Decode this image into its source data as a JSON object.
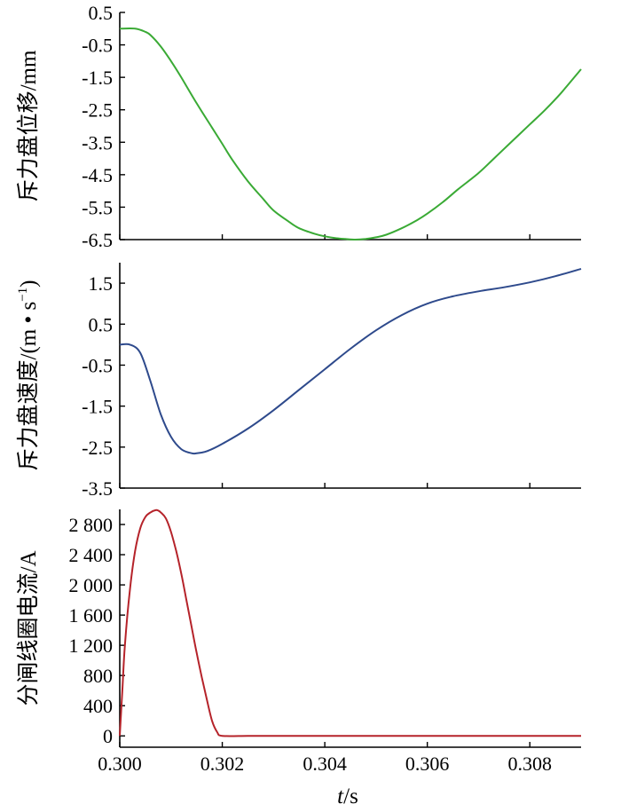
{
  "x_axis": {
    "label_italic": "t",
    "label_rest": "/s",
    "range": [
      0.3,
      0.309
    ],
    "ticks": [
      0.3,
      0.302,
      0.304,
      0.306,
      0.308
    ],
    "tick_labels": [
      "0.300",
      "0.302",
      "0.304",
      "0.306",
      "0.308"
    ]
  },
  "chart_data": [
    {
      "type": "line",
      "ylabel": "斥力盘位移/mm",
      "ylim": [
        -6.5,
        0.5
      ],
      "yticks": [
        0.5,
        -0.5,
        -1.5,
        -2.5,
        -3.5,
        -4.5,
        -5.5,
        -6.5
      ],
      "ytick_labels": [
        "0.5",
        "-0.5",
        "-1.5",
        "-2.5",
        "-3.5",
        "-4.5",
        "-5.5",
        "-6.5"
      ],
      "color": "#3aaa35",
      "x": [
        0.3,
        0.3003,
        0.3005,
        0.3006,
        0.3008,
        0.301,
        0.3012,
        0.3015,
        0.3018,
        0.302,
        0.3022,
        0.3025,
        0.3028,
        0.303,
        0.3033,
        0.3035,
        0.3038,
        0.304,
        0.3042,
        0.3044,
        0.3046,
        0.3048,
        0.305,
        0.3052,
        0.3055,
        0.3058,
        0.306,
        0.3063,
        0.3066,
        0.307,
        0.3073,
        0.3076,
        0.308,
        0.3083,
        0.3086,
        0.309
      ],
      "y": [
        0.0,
        0.0,
        -0.1,
        -0.2,
        -0.55,
        -1.0,
        -1.5,
        -2.3,
        -3.05,
        -3.55,
        -4.05,
        -4.7,
        -5.25,
        -5.6,
        -5.95,
        -6.15,
        -6.32,
        -6.4,
        -6.45,
        -6.48,
        -6.5,
        -6.48,
        -6.43,
        -6.35,
        -6.15,
        -5.9,
        -5.7,
        -5.35,
        -4.95,
        -4.45,
        -4.0,
        -3.55,
        -2.95,
        -2.5,
        -2.0,
        -1.25
      ]
    },
    {
      "type": "line",
      "ylabel": "斥力盘速度/(m • s",
      "ylabel_sup": "−1",
      "ylabel_end": ")",
      "ylim": [
        -3.5,
        2.0
      ],
      "yticks": [
        1.5,
        0.5,
        -0.5,
        -1.5,
        -2.5,
        -3.5
      ],
      "ytick_labels": [
        "1.5",
        "0.5",
        "-0.5",
        "-1.5",
        "-2.5",
        "-3.5"
      ],
      "color": "#2e4a8c",
      "x": [
        0.3,
        0.3002,
        0.3004,
        0.3006,
        0.3008,
        0.301,
        0.3012,
        0.3014,
        0.3015,
        0.3017,
        0.302,
        0.3025,
        0.303,
        0.3035,
        0.304,
        0.3045,
        0.305,
        0.3055,
        0.306,
        0.3065,
        0.307,
        0.3075,
        0.308,
        0.3085,
        0.309
      ],
      "y": [
        0.0,
        0.0,
        -0.2,
        -0.9,
        -1.7,
        -2.25,
        -2.55,
        -2.65,
        -2.65,
        -2.6,
        -2.42,
        -2.05,
        -1.6,
        -1.1,
        -0.6,
        -0.1,
        0.35,
        0.72,
        1.0,
        1.18,
        1.3,
        1.4,
        1.52,
        1.67,
        1.85
      ]
    },
    {
      "type": "line",
      "ylabel": "分闸线圈电流/A",
      "ylim": [
        -150,
        3000
      ],
      "yticks": [
        0,
        400,
        800,
        1200,
        1600,
        2000,
        2400,
        2800
      ],
      "ytick_labels": [
        "0",
        "400",
        "800",
        "1 200",
        "1 600",
        "2 000",
        "2 400",
        "2 800"
      ],
      "color": "#b5232a",
      "x": [
        0.3,
        0.30005,
        0.3001,
        0.3002,
        0.3003,
        0.3004,
        0.3005,
        0.3006,
        0.3007,
        0.30075,
        0.3008,
        0.3009,
        0.301,
        0.3011,
        0.3012,
        0.3013,
        0.3014,
        0.3015,
        0.3016,
        0.3017,
        0.3018,
        0.3019,
        0.302,
        0.3025,
        0.303,
        0.304,
        0.305,
        0.306,
        0.307,
        0.308,
        0.309
      ],
      "y": [
        0,
        600,
        1200,
        1950,
        2450,
        2750,
        2900,
        2960,
        2990,
        2985,
        2960,
        2880,
        2700,
        2450,
        2150,
        1800,
        1450,
        1100,
        780,
        480,
        200,
        50,
        0,
        0,
        0,
        0,
        0,
        0,
        0,
        0,
        0
      ]
    }
  ]
}
